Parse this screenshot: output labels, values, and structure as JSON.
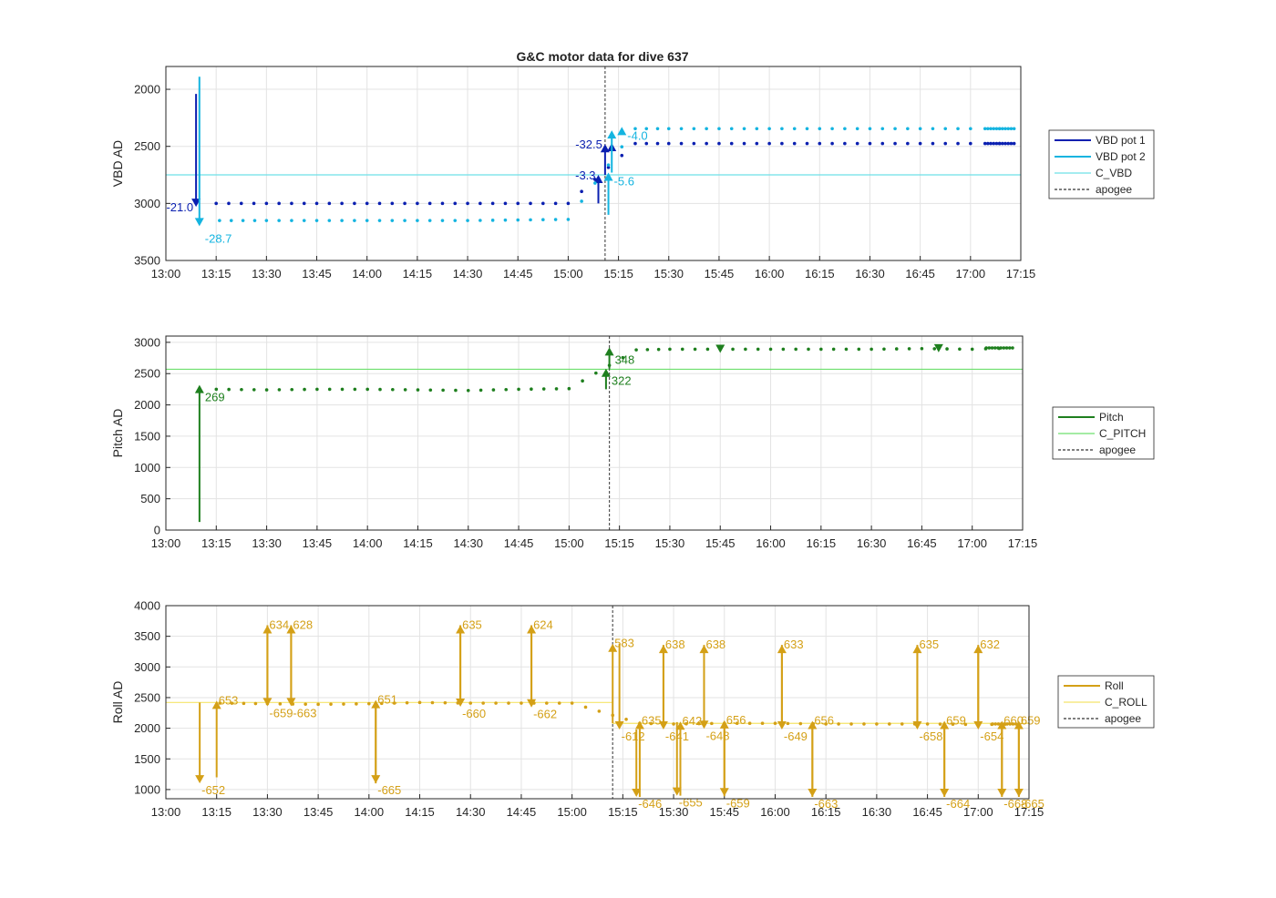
{
  "chart_data": [
    {
      "type": "line",
      "title": "G&C motor data for dive 637",
      "ylabel": "VBD AD",
      "ylim": [
        1800,
        3500
      ],
      "yreversed": true,
      "yticks": [
        "2000",
        "2500",
        "3000",
        "3500"
      ],
      "xlim": [
        "13:00",
        "17:15"
      ],
      "xticks": [
        "13:00",
        "13:15",
        "13:30",
        "13:45",
        "14:00",
        "14:15",
        "14:30",
        "14:45",
        "15:00",
        "15:15",
        "15:30",
        "15:45",
        "16:00",
        "16:15",
        "16:30",
        "16:45",
        "17:00",
        "17:15"
      ],
      "grid": true,
      "legend_position": "outside-right",
      "apogee": "15:11",
      "reference_lines": [
        {
          "name": "C_VBD",
          "value": 2750,
          "color": "#6ee0e8"
        }
      ],
      "series": [
        {
          "name": "VBD pot 1",
          "color": "#0a1fb0",
          "arrows": [
            {
              "x": "13:09",
              "from": 2040,
              "to": 3030,
              "label": "-21.0",
              "label_side": "left"
            },
            {
              "x": "15:09",
              "from": 3000,
              "to": 2750,
              "label": "-3.3",
              "label_side": "left"
            },
            {
              "x": "15:11",
              "from": 2750,
              "to": 2480,
              "label": "-32.5",
              "label_side": "left"
            },
            {
              "x": "15:13",
              "from": 2540,
              "to": 2470,
              "label": "",
              "label_side": "right"
            }
          ],
          "x": [
            "13:15",
            "13:30",
            "13:45",
            "14:00",
            "14:15",
            "14:30",
            "14:45",
            "15:00",
            "15:20",
            "15:30",
            "15:45",
            "16:00",
            "16:15",
            "16:30",
            "16:45",
            "17:00",
            "17:13"
          ],
          "values": [
            3000,
            3000,
            3000,
            3000,
            3000,
            3000,
            3000,
            3000,
            2475,
            2475,
            2475,
            2475,
            2475,
            2475,
            2475,
            2475,
            2475
          ]
        },
        {
          "name": "VBD pot 2",
          "color": "#14b4e0",
          "arrows": [
            {
              "x": "13:10",
              "from": 1890,
              "to": 3200,
              "label": "-28.7",
              "label_side": "below-right"
            },
            {
              "x": "15:12",
              "from": 3100,
              "to": 2730,
              "label": "-5.6",
              "label_side": "right"
            },
            {
              "x": "15:13",
              "from": 2730,
              "to": 2360,
              "label": "",
              "label_side": "right"
            },
            {
              "x": "15:16",
              "from": 2390,
              "to": 2330,
              "label": "-4.0",
              "label_side": "right"
            }
          ],
          "x": [
            "13:16",
            "13:30",
            "13:45",
            "14:00",
            "14:15",
            "14:30",
            "14:45",
            "15:00",
            "15:20",
            "15:30",
            "15:45",
            "16:00",
            "16:15",
            "16:30",
            "16:45",
            "17:00",
            "17:13"
          ],
          "values": [
            3150,
            3150,
            3150,
            3150,
            3150,
            3150,
            3145,
            3140,
            2345,
            2345,
            2345,
            2345,
            2345,
            2345,
            2345,
            2345,
            2345
          ]
        }
      ],
      "legend": [
        "VBD pot 1",
        "VBD pot 2",
        "C_VBD",
        "apogee"
      ]
    },
    {
      "type": "line",
      "ylabel": "Pitch AD",
      "ylim": [
        0,
        3100
      ],
      "yticks": [
        "0",
        "500",
        "1000",
        "1500",
        "2000",
        "2500",
        "3000"
      ],
      "xlim": [
        "13:00",
        "17:15"
      ],
      "xticks": [
        "13:00",
        "13:15",
        "13:30",
        "13:45",
        "14:00",
        "14:15",
        "14:30",
        "14:45",
        "15:00",
        "15:15",
        "15:30",
        "15:45",
        "16:00",
        "16:15",
        "16:30",
        "16:45",
        "17:00",
        "17:15"
      ],
      "grid": true,
      "legend_position": "outside-right",
      "apogee": "15:12",
      "reference_lines": [
        {
          "name": "C_PITCH",
          "value": 2570,
          "color": "#6ee06e"
        }
      ],
      "series": [
        {
          "name": "Pitch",
          "color": "#1e7f1e",
          "arrows": [
            {
              "x": "13:10",
              "from": 130,
              "to": 2320,
              "label": "269",
              "label_side": "below-right"
            },
            {
              "x": "15:11",
              "from": 2250,
              "to": 2580,
              "label": "322",
              "label_side": "below-right"
            },
            {
              "x": "15:12",
              "from": 2580,
              "to": 2920,
              "label": "348",
              "label_side": "below-right"
            },
            {
              "x": "15:45",
              "from": 2920,
              "to": 2830,
              "label": "",
              "label_side": "right"
            },
            {
              "x": "16:50",
              "from": 2930,
              "to": 2840,
              "label": "",
              "label_side": "right"
            }
          ],
          "x": [
            "13:15",
            "13:30",
            "13:45",
            "14:00",
            "14:15",
            "14:30",
            "14:45",
            "15:00",
            "15:20",
            "15:30",
            "15:45",
            "16:00",
            "16:15",
            "16:30",
            "16:45",
            "17:00",
            "17:12"
          ],
          "values": [
            2250,
            2240,
            2250,
            2250,
            2240,
            2230,
            2250,
            2260,
            2880,
            2890,
            2890,
            2890,
            2890,
            2890,
            2900,
            2890,
            2910
          ]
        }
      ],
      "legend": [
        "Pitch",
        "C_PITCH",
        "apogee"
      ]
    },
    {
      "type": "line",
      "ylabel": "Roll AD",
      "ylim": [
        850,
        4000
      ],
      "yticks": [
        "1000",
        "1500",
        "2000",
        "2500",
        "3000",
        "3500",
        "4000"
      ],
      "xlim": [
        "13:00",
        "17:15"
      ],
      "xticks": [
        "13:00",
        "13:15",
        "13:30",
        "13:45",
        "14:00",
        "14:15",
        "14:30",
        "14:45",
        "15:00",
        "15:15",
        "15:30",
        "15:45",
        "16:00",
        "16:15",
        "16:30",
        "16:45",
        "17:00",
        "17:15"
      ],
      "grid": true,
      "legend_position": "outside-right",
      "apogee": "15:12",
      "reference_lines": [
        {
          "name": "C_ROLL",
          "value": 2420,
          "color": "#f4e46a",
          "xrange": [
            "13:00",
            "15:12"
          ]
        },
        {
          "name": "C_ROLL",
          "value": 2080,
          "color": "#f4e46a",
          "xrange": [
            "15:12",
            "17:15"
          ]
        }
      ],
      "series": [
        {
          "name": "Roll",
          "color": "#d4a017",
          "arrows": [
            {
              "x": "13:10",
              "from": 2420,
              "to": 1100,
              "label": "-652",
              "label_side": "right-below"
            },
            {
              "x": "13:15",
              "from": 1200,
              "to": 2450,
              "label": "653",
              "label_side": "right-above"
            },
            {
              "x": "13:30",
              "from": 2400,
              "to": 3680,
              "label": "634",
              "label_side": "right-above"
            },
            {
              "x": "13:30",
              "from": 3680,
              "to": 2360,
              "label": "-659",
              "label_side": "right-below"
            },
            {
              "x": "13:37",
              "from": 2400,
              "to": 3680,
              "label": "628",
              "label_side": "right-above"
            },
            {
              "x": "13:37",
              "from": 3680,
              "to": 2360,
              "label": "-663",
              "label_side": "right-below"
            },
            {
              "x": "14:02",
              "from": 2400,
              "to": 1100,
              "label": "-665",
              "label_side": "right-below"
            },
            {
              "x": "14:02",
              "from": 1100,
              "to": 2460,
              "label": "651",
              "label_side": "right-above"
            },
            {
              "x": "14:27",
              "from": 2420,
              "to": 3680,
              "label": "635",
              "label_side": "right-above"
            },
            {
              "x": "14:27",
              "from": 3680,
              "to": 2350,
              "label": "-660",
              "label_side": "right-below"
            },
            {
              "x": "14:48",
              "from": 2420,
              "to": 3680,
              "label": "624",
              "label_side": "right-above"
            },
            {
              "x": "14:48",
              "from": 3680,
              "to": 2340,
              "label": "-662",
              "label_side": "right-below"
            },
            {
              "x": "15:12",
              "from": 2080,
              "to": 3380,
              "label": "583",
              "label_side": "right-above"
            },
            {
              "x": "15:14",
              "from": 3380,
              "to": 1980,
              "label": "-612",
              "label_side": "right-below"
            },
            {
              "x": "15:19",
              "from": 1980,
              "to": 880,
              "label": "-646",
              "label_side": "right-below"
            },
            {
              "x": "15:20",
              "from": 880,
              "to": 2120,
              "label": "635",
              "label_side": "right-above"
            },
            {
              "x": "15:27",
              "from": 2080,
              "to": 3360,
              "label": "638",
              "label_side": "right-above"
            },
            {
              "x": "15:27",
              "from": 3360,
              "to": 1980,
              "label": "-641",
              "label_side": "right-below"
            },
            {
              "x": "15:31",
              "from": 2100,
              "to": 900,
              "label": "-655",
              "label_side": "right-below"
            },
            {
              "x": "15:32",
              "from": 900,
              "to": 2110,
              "label": "642",
              "label_side": "right-above"
            },
            {
              "x": "15:39",
              "from": 2080,
              "to": 3360,
              "label": "638",
              "label_side": "right-above"
            },
            {
              "x": "15:39",
              "from": 3360,
              "to": 1990,
              "label": "-648",
              "label_side": "right-below"
            },
            {
              "x": "15:45",
              "from": 2100,
              "to": 890,
              "label": "-659",
              "label_side": "right-below"
            },
            {
              "x": "15:45",
              "from": 890,
              "to": 2130,
              "label": "656",
              "label_side": "right-above"
            },
            {
              "x": "16:02",
              "from": 2080,
              "to": 3360,
              "label": "633",
              "label_side": "right-above"
            },
            {
              "x": "16:02",
              "from": 3360,
              "to": 1980,
              "label": "-649",
              "label_side": "right-below"
            },
            {
              "x": "16:11",
              "from": 2080,
              "to": 880,
              "label": "-663",
              "label_side": "right-below"
            },
            {
              "x": "16:11",
              "from": 880,
              "to": 2120,
              "label": "656",
              "label_side": "right-above"
            },
            {
              "x": "16:42",
              "from": 2080,
              "to": 3360,
              "label": "635",
              "label_side": "right-above"
            },
            {
              "x": "16:42",
              "from": 3360,
              "to": 1980,
              "label": "-658",
              "label_side": "right-below"
            },
            {
              "x": "16:50",
              "from": 2080,
              "to": 880,
              "label": "-664",
              "label_side": "right-below"
            },
            {
              "x": "16:50",
              "from": 880,
              "to": 2120,
              "label": "659",
              "label_side": "right-above"
            },
            {
              "x": "17:00",
              "from": 2080,
              "to": 3360,
              "label": "632",
              "label_side": "right-above"
            },
            {
              "x": "17:00",
              "from": 3360,
              "to": 1980,
              "label": "-654",
              "label_side": "right-below"
            },
            {
              "x": "17:07",
              "from": 2080,
              "to": 880,
              "label": "-668",
              "label_side": "right-below"
            },
            {
              "x": "17:07",
              "from": 880,
              "to": 2120,
              "label": "660",
              "label_side": "right-above"
            },
            {
              "x": "17:12",
              "from": 2080,
              "to": 880,
              "label": "-665",
              "label_side": "right-below"
            },
            {
              "x": "17:12",
              "from": 880,
              "to": 2120,
              "label": "659",
              "label_side": "right-above"
            }
          ],
          "x": [
            "13:16",
            "13:30",
            "13:45",
            "14:00",
            "14:15",
            "14:30",
            "14:45",
            "15:00",
            "15:20",
            "15:30",
            "15:45",
            "16:00",
            "16:15",
            "16:30",
            "16:45",
            "17:00",
            "17:12"
          ],
          "values": [
            2410,
            2400,
            2390,
            2400,
            2420,
            2410,
            2410,
            2410,
            2080,
            2070,
            2080,
            2080,
            2070,
            2070,
            2070,
            2060,
            2070
          ]
        }
      ],
      "legend": [
        "Roll",
        "C_ROLL",
        "apogee"
      ]
    }
  ]
}
